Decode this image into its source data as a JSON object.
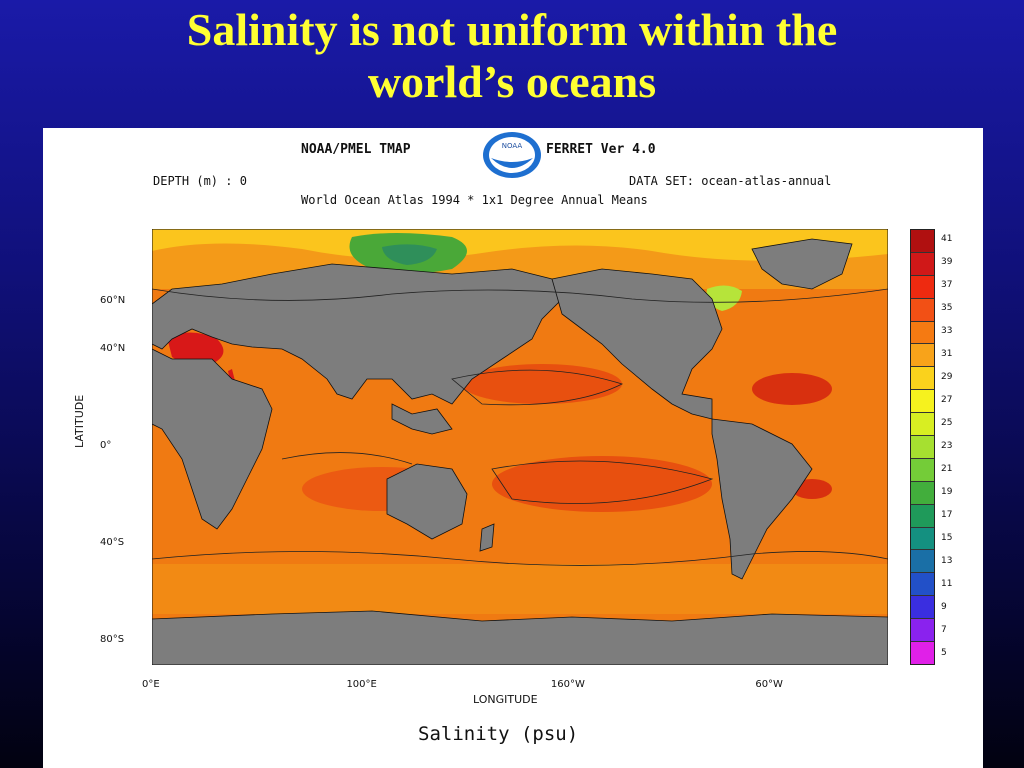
{
  "slide": {
    "title_line1": "Salinity is not uniform within the",
    "title_line2": "world’s oceans",
    "title_color": "#ffff33",
    "background_color": "#10107a"
  },
  "figure": {
    "header_left": "NOAA/PMEL TMAP",
    "header_right": "FERRET Ver 4.0",
    "logo_text": "NOAA",
    "depth_label": "DEPTH (m) : 0",
    "dataset_label": "DATA SET: ocean-atlas-annual",
    "subtitle": "World Ocean Atlas 1994 * 1x1 Degree Annual Means",
    "ylabel": "LATITUDE",
    "xlabel": "LONGITUDE",
    "caption": "Salinity (psu)",
    "y_ticks": [
      {
        "label": "60°N",
        "lat": 60
      },
      {
        "label": "40°N",
        "lat": 40
      },
      {
        "label": "0°",
        "lat": 0
      },
      {
        "label": "40°S",
        "lat": -40
      },
      {
        "label": "80°S",
        "lat": -80
      }
    ],
    "x_ticks": [
      {
        "label": "0°E",
        "lon": 0
      },
      {
        "label": "100°E",
        "lon": 100
      },
      {
        "label": "160°W",
        "lon": 200
      },
      {
        "label": "60°W",
        "lon": 300
      }
    ],
    "lon_range": [
      0,
      360
    ],
    "lat_range": [
      -90,
      90
    ],
    "land_color": "#7d7d7d",
    "ocean_base_color": "#f07a12",
    "colorbar": {
      "labels": [
        "41",
        "39",
        "37",
        "35",
        "33",
        "31",
        "29",
        "27",
        "25",
        "23",
        "21",
        "19",
        "17",
        "15",
        "13",
        "11",
        "9",
        "7",
        "5"
      ],
      "colors": [
        "#b01010",
        "#d01818",
        "#ee2a10",
        "#f25015",
        "#f57a12",
        "#f8a31a",
        "#fad21c",
        "#f6f21e",
        "#d8ee22",
        "#a6e030",
        "#74cc38",
        "#42ae3c",
        "#1f9a5a",
        "#149080",
        "#1a6fa6",
        "#2250c8",
        "#3a2ee0",
        "#8a22ee",
        "#e020e8"
      ]
    }
  }
}
